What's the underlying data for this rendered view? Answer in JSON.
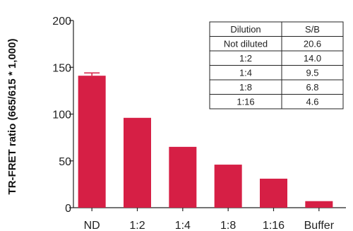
{
  "chart_data": {
    "type": "bar",
    "ylabel": "TR-FRET ratio (665/615 * 1,000)",
    "xlabel": "",
    "categories": [
      "ND",
      "1:2",
      "1:4",
      "1:8",
      "1:16",
      "Buffer"
    ],
    "values": [
      141,
      96,
      65,
      46,
      31,
      7
    ],
    "error": [
      3,
      0,
      0,
      0,
      0,
      0
    ],
    "ylim": [
      0,
      200
    ],
    "yticks": [
      0,
      50,
      100,
      150,
      200
    ],
    "bar_color": "#d61f45",
    "grid": false,
    "table": {
      "headers": [
        "Dilution",
        "S/B"
      ],
      "rows": [
        [
          "Not diluted",
          "20.6"
        ],
        [
          "1:2",
          "14.0"
        ],
        [
          "1:4",
          "9.5"
        ],
        [
          "1:8",
          "6.8"
        ],
        [
          "1:16",
          "4.6"
        ]
      ]
    }
  }
}
